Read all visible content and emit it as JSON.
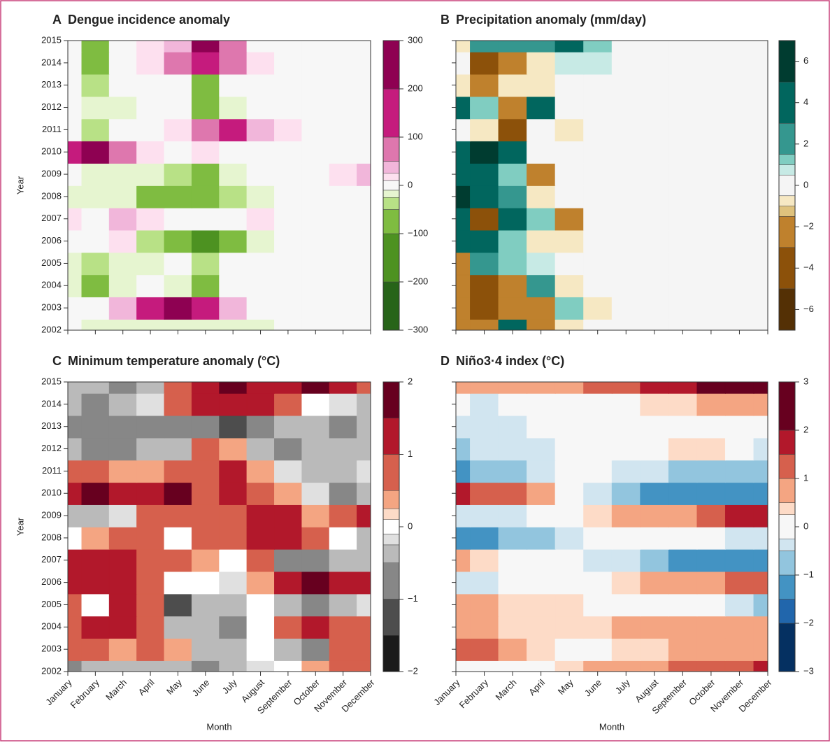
{
  "chart_data": [
    {
      "type": "contour",
      "label": "A",
      "title": "Dengue incidence anomaly",
      "ylabel": "Year",
      "x": [
        "January",
        "February",
        "March",
        "April",
        "May",
        "June",
        "July",
        "August",
        "September",
        "October",
        "November",
        "December"
      ],
      "y": [
        2002,
        2003,
        2004,
        2005,
        2006,
        2007,
        2008,
        2009,
        2010,
        2011,
        2012,
        2013,
        2014,
        2015
      ],
      "z": [
        [
          -10,
          -15,
          -15,
          -15,
          -15,
          -15,
          -15,
          -15,
          -10,
          -10,
          0,
          0
        ],
        [
          -10,
          0,
          30,
          120,
          250,
          120,
          30,
          0,
          -10,
          -10,
          0,
          0
        ],
        [
          -15,
          -60,
          -15,
          0,
          -15,
          -60,
          -10,
          -10,
          -10,
          0,
          0,
          0
        ],
        [
          -15,
          -30,
          -15,
          -15,
          0,
          -30,
          -10,
          -10,
          0,
          0,
          0,
          0
        ],
        [
          0,
          0,
          15,
          -30,
          -60,
          -120,
          -60,
          -15,
          0,
          0,
          0,
          0
        ],
        [
          15,
          0,
          30,
          10,
          0,
          0,
          0,
          15,
          0,
          0,
          0,
          0
        ],
        [
          -15,
          -15,
          -15,
          -60,
          -60,
          -60,
          -40,
          -15,
          0,
          0,
          0,
          0
        ],
        [
          0,
          -15,
          -15,
          -15,
          -40,
          -70,
          -15,
          0,
          0,
          0,
          15,
          40
        ],
        [
          120,
          250,
          80,
          20,
          0,
          20,
          0,
          0,
          0,
          0,
          0,
          0
        ],
        [
          0,
          -30,
          0,
          0,
          20,
          60,
          120,
          40,
          20,
          0,
          0,
          0
        ],
        [
          -10,
          -20,
          -20,
          0,
          -10,
          -60,
          -15,
          0,
          0,
          0,
          0,
          0
        ],
        [
          -10,
          -30,
          -10,
          0,
          -10,
          -60,
          -10,
          0,
          0,
          0,
          0,
          0
        ],
        [
          -10,
          -60,
          -10,
          20,
          60,
          100,
          60,
          20,
          0,
          0,
          0,
          0
        ],
        [
          -10,
          -60,
          -10,
          20,
          40,
          220,
          60,
          0,
          0,
          0,
          0,
          0
        ]
      ],
      "levels": [
        -300,
        -200,
        -100,
        -50,
        -25,
        -10,
        10,
        25,
        50,
        100,
        200,
        300
      ],
      "colors": [
        "#276419",
        "#4d9221",
        "#7fbc41",
        "#b8e186",
        "#e6f5d0",
        "#f7f7f7",
        "#fde0ef",
        "#f1b6da",
        "#de77ae",
        "#c51b7d",
        "#8e0152"
      ],
      "cbar_lim": [
        -300,
        300
      ],
      "cbar_ticks": [
        {
          "value": -300,
          "label": "−300"
        },
        {
          "value": -200,
          "label": "−200"
        },
        {
          "value": -100,
          "label": "−100"
        },
        0,
        100,
        200,
        300
      ]
    },
    {
      "type": "contour",
      "label": "B",
      "title": "Precipitation anomaly (mm/day)",
      "x": [
        "January",
        "February",
        "March",
        "April",
        "May",
        "June",
        "July",
        "August",
        "September",
        "October",
        "November",
        "December"
      ],
      "y": [
        2002,
        2003,
        2004,
        2005,
        2006,
        2007,
        2008,
        2009,
        2010,
        2011,
        2012,
        2013,
        2014,
        2015
      ],
      "z": [
        [
          -3,
          -3,
          4,
          -2,
          -1,
          -0.5,
          0,
          0,
          0,
          0,
          0,
          0
        ],
        [
          -3,
          -5,
          -3,
          -3,
          1,
          -1,
          0,
          0,
          0,
          0,
          0,
          0
        ],
        [
          -3,
          -5,
          -2,
          2,
          -1,
          0,
          0,
          0,
          0,
          0,
          0,
          0
        ],
        [
          -2,
          2,
          1,
          0.5,
          0,
          0,
          0,
          0,
          0,
          0,
          0,
          0
        ],
        [
          4,
          3,
          1,
          -1,
          -1,
          0,
          0,
          0,
          0,
          0,
          0,
          0
        ],
        [
          4,
          -4,
          3,
          1,
          -2,
          0,
          0,
          0,
          0,
          0,
          0,
          0
        ],
        [
          6,
          4,
          2,
          -1,
          0,
          0,
          0,
          0,
          0,
          0,
          0,
          0
        ],
        [
          4,
          4,
          1,
          -2,
          0,
          0,
          0,
          0,
          0,
          0,
          0,
          0
        ],
        [
          3,
          6,
          3,
          0,
          0,
          0,
          0,
          0,
          0,
          0,
          0,
          0
        ],
        [
          0,
          -1,
          -4,
          0,
          -1,
          0,
          0,
          0,
          0,
          0,
          0,
          0
        ],
        [
          4,
          1,
          -2,
          3,
          0,
          0,
          0,
          0,
          0,
          0,
          0,
          0
        ],
        [
          -1,
          -2,
          -1,
          -1,
          0,
          0,
          0,
          0,
          0,
          0,
          0,
          0
        ],
        [
          0,
          -4,
          -2,
          -1,
          0.5,
          0.5,
          0,
          0,
          0,
          0,
          0,
          0
        ],
        [
          -1,
          2,
          2,
          1.5,
          4,
          1,
          0,
          0,
          0,
          0,
          0,
          0
        ]
      ],
      "levels": [
        -7,
        -5,
        -3,
        -1.5,
        -1,
        -0.5,
        0.5,
        1,
        1.5,
        3,
        5,
        7
      ],
      "colors": [
        "#543005",
        "#8c510a",
        "#bf812d",
        "#dfc27d",
        "#f6e8c3",
        "#f5f5f5",
        "#c7eae5",
        "#80cdc1",
        "#35978f",
        "#01665e",
        "#003c30"
      ],
      "cbar_lim": [
        -7,
        7
      ],
      "cbar_ticks": [
        {
          "value": -6,
          "label": "−6"
        },
        {
          "value": -4,
          "label": "−4"
        },
        {
          "value": -2,
          "label": "−2"
        },
        0,
        2,
        4,
        6
      ]
    },
    {
      "type": "contour",
      "label": "C",
      "title": "Minimum temperature anomaly (°C)",
      "ylabel": "Year",
      "xlabel": "Month",
      "x": [
        "January",
        "February",
        "March",
        "April",
        "May",
        "June",
        "July",
        "August",
        "September",
        "October",
        "November",
        "December"
      ],
      "y": [
        2002,
        2003,
        2004,
        2005,
        2006,
        2007,
        2008,
        2009,
        2010,
        2011,
        2012,
        2013,
        2014,
        2015
      ],
      "z": [
        [
          -1,
          -0.5,
          -0.5,
          -0.5,
          -0.5,
          -1,
          -0.5,
          -0.25,
          0,
          0.25,
          0.5,
          0.5
        ],
        [
          0.5,
          0.5,
          0.25,
          0.5,
          0.25,
          -0.5,
          -0.5,
          0,
          -0.5,
          -1,
          0.5,
          0.5
        ],
        [
          0.5,
          1,
          1,
          0.5,
          -0.5,
          -0.5,
          -1,
          0,
          0.5,
          1,
          0.5,
          0.5
        ],
        [
          0.5,
          0,
          1,
          0.5,
          -1.5,
          -0.5,
          -0.5,
          0,
          -0.5,
          -1,
          -0.5,
          -0.25
        ],
        [
          1,
          1,
          1,
          0.5,
          0,
          0,
          -0.25,
          0.25,
          1,
          1.5,
          1,
          1
        ],
        [
          1,
          1,
          1,
          0.5,
          0.5,
          0.25,
          0,
          0.5,
          -1,
          -1,
          -0.5,
          -0.5
        ],
        [
          0,
          0.25,
          0.5,
          0.5,
          0,
          0.5,
          0.5,
          1,
          1,
          0.5,
          0,
          -0.5
        ],
        [
          -0.5,
          -0.5,
          -0.25,
          0.5,
          0.5,
          0.5,
          0.5,
          1,
          1,
          0.25,
          0.5,
          1
        ],
        [
          1,
          1.5,
          1,
          1,
          1.5,
          0.5,
          1,
          0.5,
          0.25,
          -0.25,
          -1,
          -0.5
        ],
        [
          0.5,
          0.5,
          0.25,
          0.25,
          0.5,
          0.5,
          1,
          0.25,
          -0.25,
          -0.5,
          -0.5,
          -0.25
        ],
        [
          -0.5,
          -1,
          -1,
          -0.5,
          -0.5,
          0.5,
          0.25,
          -0.5,
          -1,
          -0.5,
          -0.5,
          -0.5
        ],
        [
          -1,
          -1,
          -1,
          -1,
          -1,
          -1,
          -1.5,
          -1,
          -0.5,
          -0.5,
          -1,
          -0.5
        ],
        [
          -0.5,
          -1,
          -0.5,
          -0.25,
          0.5,
          1,
          1,
          1,
          0.5,
          0,
          -0.25,
          -0.5
        ],
        [
          -0.5,
          -0.5,
          -1,
          -0.5,
          0.5,
          1,
          1.5,
          1,
          1,
          1.5,
          1,
          0.5
        ]
      ],
      "levels": [
        -2,
        -1.5,
        -1,
        -0.5,
        -0.25,
        -0.1,
        0.1,
        0.25,
        0.5,
        1,
        1.5,
        2
      ],
      "colors": [
        "#1a1a1a",
        "#4d4d4d",
        "#878787",
        "#bababa",
        "#e0e0e0",
        "#ffffff",
        "#fddbc7",
        "#f4a582",
        "#d6604d",
        "#b2182b",
        "#67001f"
      ],
      "cbar_lim": [
        -2,
        2
      ],
      "cbar_ticks": [
        {
          "value": -2,
          "label": "−2"
        },
        {
          "value": -1,
          "label": "−1"
        },
        0,
        1,
        2
      ]
    },
    {
      "type": "contour",
      "label": "D",
      "title": "Niño3·4 index (°C)",
      "xlabel": "Month",
      "x": [
        "January",
        "February",
        "March",
        "April",
        "May",
        "June",
        "July",
        "August",
        "September",
        "October",
        "November",
        "December"
      ],
      "y": [
        2002,
        2003,
        2004,
        2005,
        2006,
        2007,
        2008,
        2009,
        2010,
        2011,
        2012,
        2013,
        2014,
        2015
      ],
      "z": [
        [
          0,
          0,
          0,
          0,
          0.25,
          0.5,
          0.75,
          0.75,
          1,
          1,
          1.25,
          1.5
        ],
        [
          1,
          1,
          0.5,
          0.25,
          0,
          0,
          0.25,
          0.25,
          0.5,
          0.5,
          0.5,
          0.5
        ],
        [
          0.5,
          0.5,
          0.25,
          0.25,
          0.25,
          0.25,
          0.5,
          0.75,
          0.75,
          0.75,
          0.75,
          0.5
        ],
        [
          0.5,
          0.5,
          0.25,
          0.25,
          0.25,
          0,
          0,
          0,
          0,
          -0.25,
          -0.5,
          -1
        ],
        [
          -0.5,
          -0.5,
          -0.25,
          -0.25,
          0,
          0,
          0.25,
          0.5,
          0.5,
          0.75,
          1,
          1
        ],
        [
          0.5,
          0.25,
          0,
          -0.25,
          -0.25,
          -0.5,
          -0.5,
          -1,
          -1.5,
          -1.5,
          -1.5,
          -1.5
        ],
        [
          -1.5,
          -1.5,
          -1,
          -1,
          -0.5,
          -0.25,
          0,
          0,
          -0.25,
          -0.25,
          -0.5,
          -0.5
        ],
        [
          -0.5,
          -0.5,
          -0.5,
          -0.25,
          0,
          0.25,
          0.5,
          0.5,
          0.5,
          1,
          1.5,
          1.5
        ],
        [
          1.5,
          1,
          1,
          0.5,
          0,
          -0.5,
          -1,
          -1.5,
          -1.5,
          -1.5,
          -1.5,
          -1.5
        ],
        [
          -1.5,
          -1,
          -1,
          -0.5,
          -0.25,
          -0.25,
          -0.5,
          -0.5,
          -1,
          -1,
          -1,
          -1
        ],
        [
          -1,
          -0.5,
          -0.5,
          -0.5,
          -0.25,
          0,
          0,
          0,
          0.25,
          0.25,
          0,
          -0.5
        ],
        [
          -0.5,
          -0.5,
          -0.5,
          -0.25,
          -0.25,
          0,
          -0.25,
          0,
          0,
          0,
          -0.25,
          -0.25
        ],
        [
          -0.25,
          -0.5,
          -0.25,
          0,
          0,
          0,
          0,
          0.25,
          0.25,
          0.5,
          0.5,
          0.5
        ],
        [
          0.5,
          0.5,
          0.5,
          0.5,
          0.5,
          1,
          1,
          1.5,
          1.5,
          2,
          2,
          2.5
        ]
      ],
      "levels": [
        -3,
        -2,
        -1.5,
        -1,
        -0.5,
        -0.25,
        0.25,
        0.5,
        1,
        1.5,
        2,
        3
      ],
      "colors": [
        "#053061",
        "#2166ac",
        "#4393c3",
        "#92c5de",
        "#d1e5f0",
        "#f7f7f7",
        "#fddbc7",
        "#f4a582",
        "#d6604d",
        "#b2182b",
        "#67001f"
      ],
      "cbar_lim": [
        -3,
        3
      ],
      "cbar_ticks": [
        {
          "value": -3,
          "label": "−3"
        },
        {
          "value": -2,
          "label": "−2"
        },
        {
          "value": -1,
          "label": "−1"
        },
        0,
        1,
        2,
        3
      ]
    }
  ]
}
